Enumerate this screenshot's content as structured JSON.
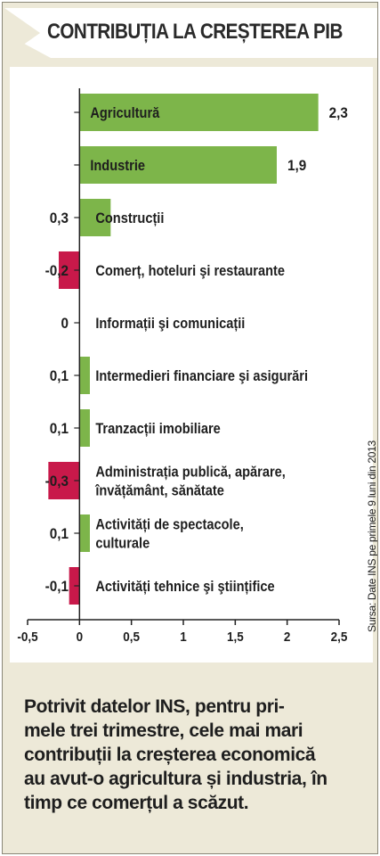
{
  "header": {
    "title": "CONTRIBUȚIA LA CREȘTEREA PIB"
  },
  "chart_data": {
    "type": "bar",
    "orientation": "horizontal",
    "title": "CONTRIBUȚIA LA CREȘTEREA PIB",
    "categories": [
      "Agricultură",
      "Industrie",
      "Construcții",
      "Comerț, hoteluri şi restaurante",
      "Informații şi comunicații",
      "Intermedieri financiare şi asigurări",
      "Tranzacții imobiliare",
      "Administrația publică, apărare, învățământ, sănătate",
      "Activități de spectacole, culturale",
      "Activități tehnice şi ştiințifice"
    ],
    "label_lines": [
      [
        "Agricultură"
      ],
      [
        "Industrie"
      ],
      [
        "Construcții"
      ],
      [
        "Comerț, hoteluri şi restaurante"
      ],
      [
        "Informații şi comunicații"
      ],
      [
        "Intermedieri financiare şi asigurări"
      ],
      [
        "Tranzacții imobiliare"
      ],
      [
        "Administrația publică, apărare,",
        "învățământ, sănătate"
      ],
      [
        "Activități de spectacole,",
        "culturale"
      ],
      [
        "Activități tehnice şi ştiințifice"
      ]
    ],
    "values": [
      2.3,
      1.9,
      0.3,
      -0.2,
      0,
      0.1,
      0.1,
      -0.3,
      0.1,
      -0.1
    ],
    "value_labels": [
      "2,3",
      "1,9",
      "0,3",
      "-0,2",
      "0",
      "0,1",
      "0,1",
      "-0,3",
      "0,1",
      "-0,1"
    ],
    "xlim": [
      -0.5,
      2.5
    ],
    "xticks": [
      -0.5,
      0,
      0.5,
      1,
      1.5,
      2,
      2.5
    ],
    "xtick_labels": [
      "-0,5",
      "0",
      "0,5",
      "1",
      "1,5",
      "2",
      "2,5"
    ],
    "grid": false,
    "colors": {
      "positive": "#7db54a",
      "negative": "#c8194a",
      "axis": "#222222"
    },
    "source": "Sursa: Date INS pe primele 9 luni din 2013"
  },
  "note": {
    "lines": [
      "Potrivit datelor INS, pentru pri-",
      "mele trei trimestre, cele mai mari",
      "contribuții la creșterea economică",
      "au avut-o agricultura și industria, în",
      "timp ce comerțul a scăzut."
    ]
  }
}
